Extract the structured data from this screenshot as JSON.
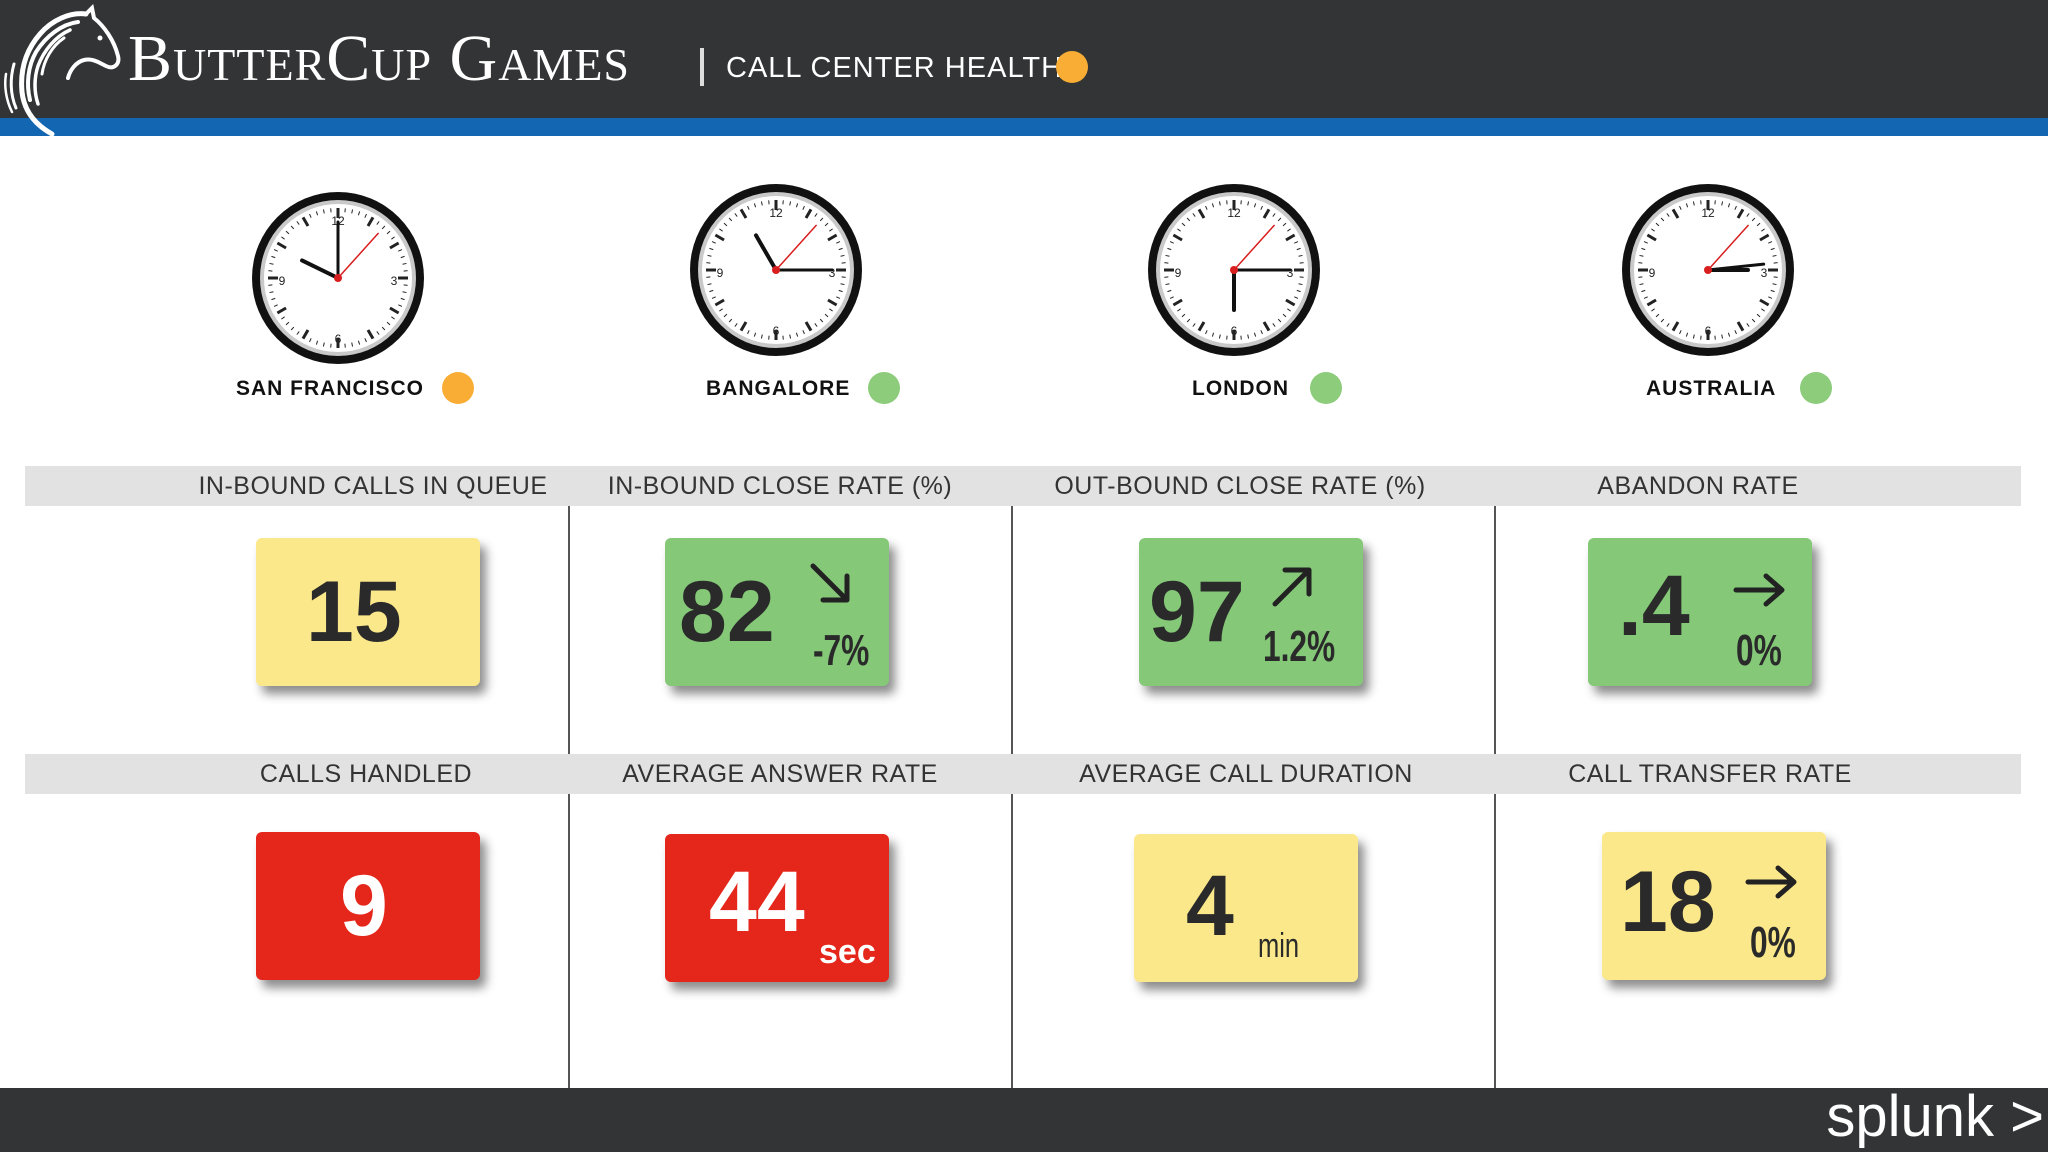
{
  "header": {
    "brand": "ButterCup Games",
    "subtitle": "CALL CENTER HEALTH",
    "status_color": "#f9ad34"
  },
  "locations": [
    {
      "label": "SAN FRANCISCO",
      "status_color": "#f9ad34"
    },
    {
      "label": "BANGALORE",
      "status_color": "#8ccc7a"
    },
    {
      "label": "LONDON",
      "status_color": "#8ccc7a"
    },
    {
      "label": "AUSTRALIA",
      "status_color": "#8ccc7a"
    }
  ],
  "row1": [
    {
      "title": "IN-BOUND CALLS IN QUEUE",
      "value": "15",
      "color": "#fbe88a"
    },
    {
      "title": "IN-BOUND CLOSE RATE (%)",
      "value": "82",
      "delta": "-7%",
      "trend": "down-right",
      "color": "#84c878"
    },
    {
      "title": "OUT-BOUND CLOSE RATE (%)",
      "value": "97",
      "delta": "1.2%",
      "trend": "up-right",
      "color": "#84c878"
    },
    {
      "title": "ABANDON RATE",
      "value": ".4",
      "delta": "0%",
      "trend": "right",
      "color": "#84c878"
    }
  ],
  "row2": [
    {
      "title": "CALLS HANDLED",
      "value": "9",
      "color": "#e5261b"
    },
    {
      "title": "AVERAGE ANSWER RATE",
      "value": "44",
      "unit": "sec",
      "color": "#e5261b"
    },
    {
      "title": "AVERAGE CALL DURATION",
      "value": "4",
      "unit": "min",
      "color": "#fbe88a"
    },
    {
      "title": "CALL TRANSFER RATE",
      "value": "18",
      "delta": "0%",
      "trend": "right",
      "color": "#fbe88a"
    }
  ],
  "footer": {
    "logo": "splunk >"
  }
}
